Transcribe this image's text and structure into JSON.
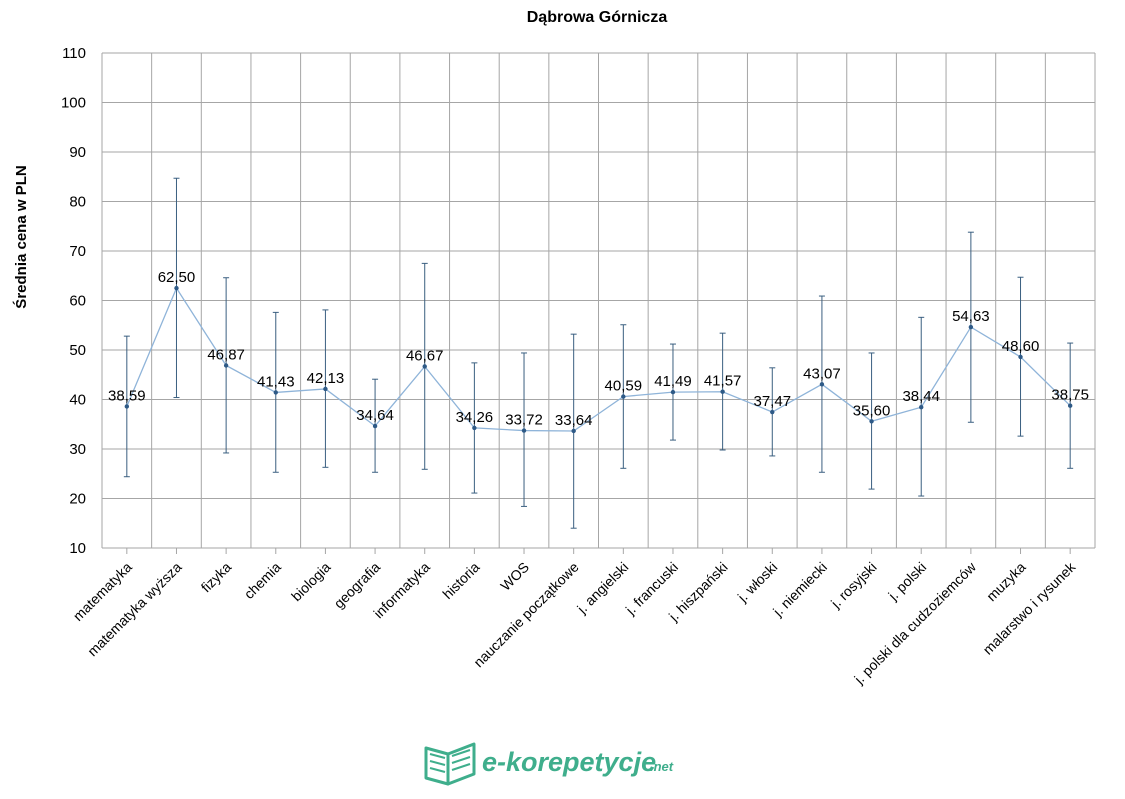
{
  "chart_data": {
    "type": "line",
    "title": "Dąbrowa Górnicza",
    "xlabel": "",
    "ylabel": "Średnia cena w PLN",
    "ylim": [
      10,
      110
    ],
    "yticks": [
      "10",
      "20",
      "30",
      "40",
      "50",
      "60",
      "70",
      "80",
      "90",
      "100",
      "110"
    ],
    "grid": true,
    "legend": "none",
    "categories": [
      "matematyka",
      "matematyka wyższa",
      "fizyka",
      "chemia",
      "biologia",
      "geografia",
      "informatyka",
      "historia",
      "WOS",
      "nauczanie początkowe",
      "j. angielski",
      "j. francuski",
      "j. hiszpański",
      "j. włoski",
      "j. niemiecki",
      "j. rosyjski",
      "j. polski",
      "j. polski dla cudzoziemców",
      "muzyka",
      "malarstwo i rysunek"
    ],
    "series": [
      {
        "name": "Średnia cena w PLN",
        "values": [
          38.59,
          62.5,
          46.87,
          41.43,
          42.13,
          34.64,
          46.67,
          34.26,
          33.72,
          33.64,
          40.59,
          41.49,
          41.57,
          37.47,
          43.07,
          35.6,
          38.44,
          54.63,
          48.6,
          38.75
        ],
        "labels": [
          "38,59",
          "62,50",
          "46,87",
          "41,43",
          "42,13",
          "34,64",
          "46,67",
          "34,26",
          "33,72",
          "33,64",
          "40,59",
          "41,49",
          "41,57",
          "37,47",
          "43,07",
          "35,60",
          "38,44",
          "54,63",
          "48,60",
          "38,75"
        ],
        "error_low": [
          24.4,
          40.4,
          29.2,
          25.3,
          26.3,
          25.3,
          25.9,
          21.1,
          18.4,
          14.0,
          26.1,
          31.8,
          29.8,
          28.6,
          25.3,
          21.9,
          20.5,
          35.4,
          32.6,
          26.1
        ],
        "error_high": [
          52.8,
          84.7,
          64.6,
          57.6,
          58.1,
          44.1,
          67.5,
          47.4,
          49.4,
          53.2,
          55.1,
          51.2,
          53.4,
          46.4,
          60.9,
          49.4,
          56.6,
          73.8,
          64.7,
          51.4
        ]
      }
    ]
  },
  "branding": {
    "logo_text": "e-korepetycje",
    "logo_suffix": ".net"
  },
  "colors": {
    "line": "#8fb4d9",
    "marker": "#2e5a87",
    "error_bar": "#3a5f80",
    "grid": "#a6a6a6",
    "logo": "#3fae8c"
  }
}
